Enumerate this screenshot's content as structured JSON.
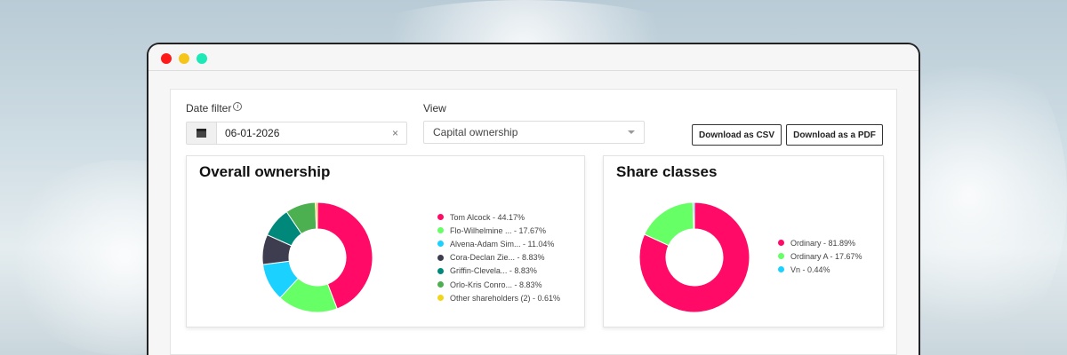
{
  "window": {
    "dots": [
      "#ff1a1a",
      "#f5c518",
      "#1de9b6"
    ]
  },
  "filters": {
    "date_label": "Date filter",
    "date_value": "06-01-2026",
    "view_label": "View",
    "view_value": "Capital ownership",
    "download_csv": "Download as CSV",
    "download_pdf": "Download as a PDF"
  },
  "overall": {
    "title": "Overall ownership",
    "chart_data": {
      "type": "pie",
      "donut": true,
      "items": [
        {
          "label": "Tom Alcock - 44.17%",
          "value": 44.17,
          "color": "#ff0a66"
        },
        {
          "label": "Flo-Wilhelmine ... - 17.67%",
          "value": 17.67,
          "color": "#66ff66"
        },
        {
          "label": "Alvena-Adam Sim... - 11.04%",
          "value": 11.04,
          "color": "#1ad1ff"
        },
        {
          "label": "Cora-Declan Zie... - 8.83%",
          "value": 8.83,
          "color": "#3d3d4f"
        },
        {
          "label": "Griffin-Clevela... - 8.83%",
          "value": 8.83,
          "color": "#00897b"
        },
        {
          "label": "Orlo-Kris Conro... - 8.83%",
          "value": 8.83,
          "color": "#4caf50"
        },
        {
          "label": "Other shareholders (2) - 0.61%",
          "value": 0.61,
          "color": "#f2d51a"
        }
      ]
    }
  },
  "classes": {
    "title": "Share classes",
    "chart_data": {
      "type": "pie",
      "donut": true,
      "items": [
        {
          "label": "Ordinary - 81.89%",
          "value": 81.89,
          "color": "#ff0a66"
        },
        {
          "label": "Ordinary A - 17.67%",
          "value": 17.67,
          "color": "#66ff66"
        },
        {
          "label": "Vn - 0.44%",
          "value": 0.44,
          "color": "#1ad1ff"
        }
      ]
    }
  }
}
